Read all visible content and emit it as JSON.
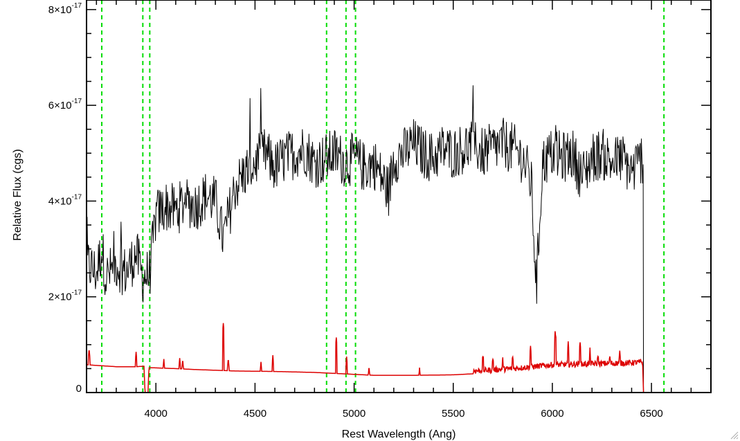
{
  "chart_data": {
    "type": "line",
    "title": "",
    "xlabel": "Rest Wavelength (Ang)",
    "ylabel": "Relative Flux (cgs)",
    "xlim": [
      3650,
      6800
    ],
    "ylim": [
      0,
      8.2e-17
    ],
    "x_ticks": [
      {
        "value": 4000,
        "label": "4000"
      },
      {
        "value": 4500,
        "label": "4500"
      },
      {
        "value": 5000,
        "label": "5000"
      },
      {
        "value": 5500,
        "label": "5500"
      },
      {
        "value": 6000,
        "label": "6000"
      },
      {
        "value": 6500,
        "label": "6500"
      }
    ],
    "y_ticks": [
      {
        "value": 0,
        "mantissa": "0",
        "exponent": ""
      },
      {
        "value": 2e-17,
        "mantissa": "2×10",
        "exponent": "-17"
      },
      {
        "value": 4e-17,
        "mantissa": "4×10",
        "exponent": "-17"
      },
      {
        "value": 6e-17,
        "mantissa": "6×10",
        "exponent": "-17"
      },
      {
        "value": 8e-17,
        "mantissa": "8×10",
        "exponent": "-17"
      }
    ],
    "vertical_lines": [
      {
        "x": 3727,
        "style": "dashed",
        "color": "#00dd00"
      },
      {
        "x": 3934,
        "style": "dashed",
        "color": "#00dd00"
      },
      {
        "x": 3969,
        "style": "dashed",
        "color": "#00dd00"
      },
      {
        "x": 4861,
        "style": "dashed",
        "color": "#00dd00"
      },
      {
        "x": 4959,
        "style": "dashed",
        "color": "#00dd00"
      },
      {
        "x": 5007,
        "style": "dashed",
        "color": "#00dd00"
      },
      {
        "x": 6563,
        "style": "dashed",
        "color": "#00dd00"
      }
    ],
    "series": [
      {
        "color": "#000000",
        "x_range": [
          3650,
          6460
        ],
        "points": [
          [
            3650,
            2.7e-17
          ],
          [
            3700,
            2.5e-17
          ],
          [
            3727,
            3e-17
          ],
          [
            3750,
            2.4e-17
          ],
          [
            3800,
            2.7e-17
          ],
          [
            3850,
            2.5e-17
          ],
          [
            3900,
            2.9e-17
          ],
          [
            3934,
            2.4e-17
          ],
          [
            3969,
            2.5e-17
          ],
          [
            4000,
            3.7e-17
          ],
          [
            4050,
            3.9e-17
          ],
          [
            4100,
            3.8e-17
          ],
          [
            4150,
            4e-17
          ],
          [
            4200,
            3.9e-17
          ],
          [
            4250,
            4.1e-17
          ],
          [
            4300,
            4e-17
          ],
          [
            4340,
            3.2e-17
          ],
          [
            4400,
            4.3e-17
          ],
          [
            4450,
            4.6e-17
          ],
          [
            4500,
            4.8e-17
          ],
          [
            4550,
            5e-17
          ],
          [
            4600,
            4.7e-17
          ],
          [
            4650,
            4.9e-17
          ],
          [
            4700,
            5e-17
          ],
          [
            4750,
            5.1e-17
          ],
          [
            4800,
            4.8e-17
          ],
          [
            4861,
            4.9e-17
          ],
          [
            4900,
            5e-17
          ],
          [
            4959,
            4.8e-17
          ],
          [
            5000,
            4.9e-17
          ],
          [
            5050,
            4.7e-17
          ],
          [
            5100,
            4.8e-17
          ],
          [
            5175,
            4.2e-17
          ],
          [
            5200,
            4.9e-17
          ],
          [
            5250,
            5e-17
          ],
          [
            5300,
            5.2e-17
          ],
          [
            5350,
            5e-17
          ],
          [
            5400,
            4.9e-17
          ],
          [
            5450,
            5.1e-17
          ],
          [
            5500,
            5e-17
          ],
          [
            5550,
            5.1e-17
          ],
          [
            5600,
            5.2e-17
          ],
          [
            5650,
            5e-17
          ],
          [
            5700,
            5.1e-17
          ],
          [
            5750,
            5.2e-17
          ],
          [
            5800,
            5.1e-17
          ],
          [
            5850,
            4.9e-17
          ],
          [
            5893,
            4.4e-17
          ],
          [
            5920,
            2.2e-17
          ],
          [
            5950,
            4.8e-17
          ],
          [
            6000,
            5e-17
          ],
          [
            6050,
            4.9e-17
          ],
          [
            6100,
            5e-17
          ],
          [
            6150,
            4.5e-17
          ],
          [
            6200,
            4.9e-17
          ],
          [
            6250,
            5e-17
          ],
          [
            6300,
            4.8e-17
          ],
          [
            6350,
            4.9e-17
          ],
          [
            6400,
            4.6e-17
          ],
          [
            6450,
            4.9e-17
          ]
        ]
      },
      {
        "color": "#dd0000",
        "x_range": [
          3650,
          6800
        ],
        "points": [
          [
            3650,
            5.8e-18
          ],
          [
            3800,
            5.4e-18
          ],
          [
            3900,
            5.4e-18
          ],
          [
            3940,
            5.5e-18
          ],
          [
            3945,
            0.0
          ],
          [
            3960,
            0.0
          ],
          [
            3965,
            5.2e-18
          ],
          [
            4100,
            5e-18
          ],
          [
            4200,
            4.8e-18
          ],
          [
            4340,
            4.6e-18
          ],
          [
            4400,
            4.5e-18
          ],
          [
            4600,
            4.4e-18
          ],
          [
            4800,
            4.2e-18
          ],
          [
            5000,
            3.8e-18
          ],
          [
            5100,
            3.6e-18
          ],
          [
            5300,
            3.6e-18
          ],
          [
            5500,
            3.7e-18
          ],
          [
            5640,
            4e-18
          ],
          [
            5800,
            4.4e-18
          ],
          [
            6000,
            5.2e-18
          ],
          [
            6200,
            5.4e-18
          ],
          [
            6400,
            5.6e-18
          ],
          [
            6455,
            5.8e-18
          ],
          [
            6460,
            0.0
          ],
          [
            6800,
            0.0
          ]
        ],
        "peaks": [
          [
            3663,
            9.2e-18
          ],
          [
            3900,
            8.5e-18
          ],
          [
            4040,
            7e-18
          ],
          [
            4120,
            7.2e-18
          ],
          [
            4135,
            7e-18
          ],
          [
            4340,
            1.45e-17
          ],
          [
            4365,
            7.2e-18
          ],
          [
            4530,
            6.4e-18
          ],
          [
            4590,
            7.8e-18
          ],
          [
            4910,
            1.15e-17
          ],
          [
            4962,
            7.5e-18
          ],
          [
            5075,
            5.5e-18
          ],
          [
            5330,
            5.2e-18
          ],
          [
            5650,
            7.2e-18
          ],
          [
            5700,
            6.8e-18
          ],
          [
            5750,
            6.5e-18
          ],
          [
            5800,
            7.2e-18
          ],
          [
            5890,
            9.2e-18
          ],
          [
            6015,
            1.25e-17
          ],
          [
            6080,
            9.5e-18
          ],
          [
            6140,
            1.05e-17
          ],
          [
            6190,
            8.2e-18
          ],
          [
            6230,
            7.5e-18
          ],
          [
            6290,
            7.2e-18
          ],
          [
            6340,
            7.8e-18
          ]
        ]
      }
    ],
    "grid": false,
    "legend": null
  }
}
